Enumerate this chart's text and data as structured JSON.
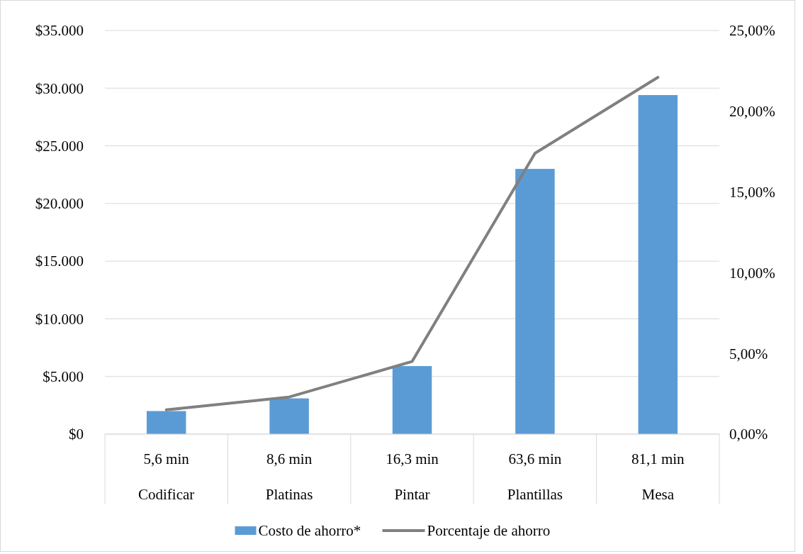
{
  "chart_data": {
    "type": "bar",
    "categories": [
      "5,6 min\nCodificar",
      "8,6 min\nPlatinas",
      "16,3 min\nPintar",
      "63,6 min\nPlantillas",
      "81,1 min\nMesa"
    ],
    "series": [
      {
        "name": "Costo de ahorro*",
        "color": "#5b9bd5",
        "values": [
          2000,
          3100,
          5900,
          23000,
          29400
        ]
      },
      {
        "name": "Porcentaje de ahorro",
        "type": "line",
        "axis": "y2",
        "color": "#808080",
        "values": [
          1.5,
          2.3,
          4.5,
          17.4,
          22.1
        ]
      }
    ],
    "ylim": [
      0,
      35000
    ],
    "yticks": [
      {
        "value": 0,
        "label": "$0"
      },
      {
        "value": 5000,
        "label": "$5.000"
      },
      {
        "value": 10000,
        "label": "$10.000"
      },
      {
        "value": 15000,
        "label": "$15.000"
      },
      {
        "value": 20000,
        "label": "$20.000"
      },
      {
        "value": 25000,
        "label": "$25.000"
      },
      {
        "value": 30000,
        "label": "$30.000"
      },
      {
        "value": 35000,
        "label": "$35.000"
      }
    ],
    "y2lim": [
      0,
      25
    ],
    "y2ticks": [
      {
        "value": 0,
        "label": "0,00%"
      },
      {
        "value": 5,
        "label": "5,00%"
      },
      {
        "value": 10,
        "label": "10,00%"
      },
      {
        "value": 15,
        "label": "15,00%"
      },
      {
        "value": 20,
        "label": "20,00%"
      },
      {
        "value": 25,
        "label": "25,00%"
      }
    ],
    "grid": "y",
    "legend": "bottom",
    "marker": "none",
    "line_style": "solid"
  }
}
